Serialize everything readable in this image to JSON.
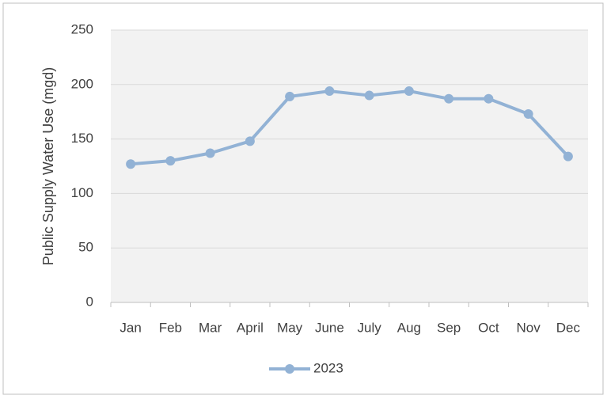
{
  "chart_data": {
    "type": "line",
    "y_label": "Public Supply Water Use (mgd)",
    "categories": [
      "Jan",
      "Feb",
      "Mar",
      "April",
      "May",
      "June",
      "July",
      "Aug",
      "Sep",
      "Oct",
      "Nov",
      "Dec"
    ],
    "series": [
      {
        "name": "2023",
        "color": "#92b2d5",
        "values": [
          127,
          130,
          137,
          148,
          189,
          194,
          190,
          194,
          187,
          187,
          173,
          134
        ]
      }
    ],
    "ylim": [
      0,
      250
    ],
    "yticks": [
      0,
      50,
      100,
      150,
      200,
      250
    ],
    "grid": true,
    "legend": "bottom"
  }
}
